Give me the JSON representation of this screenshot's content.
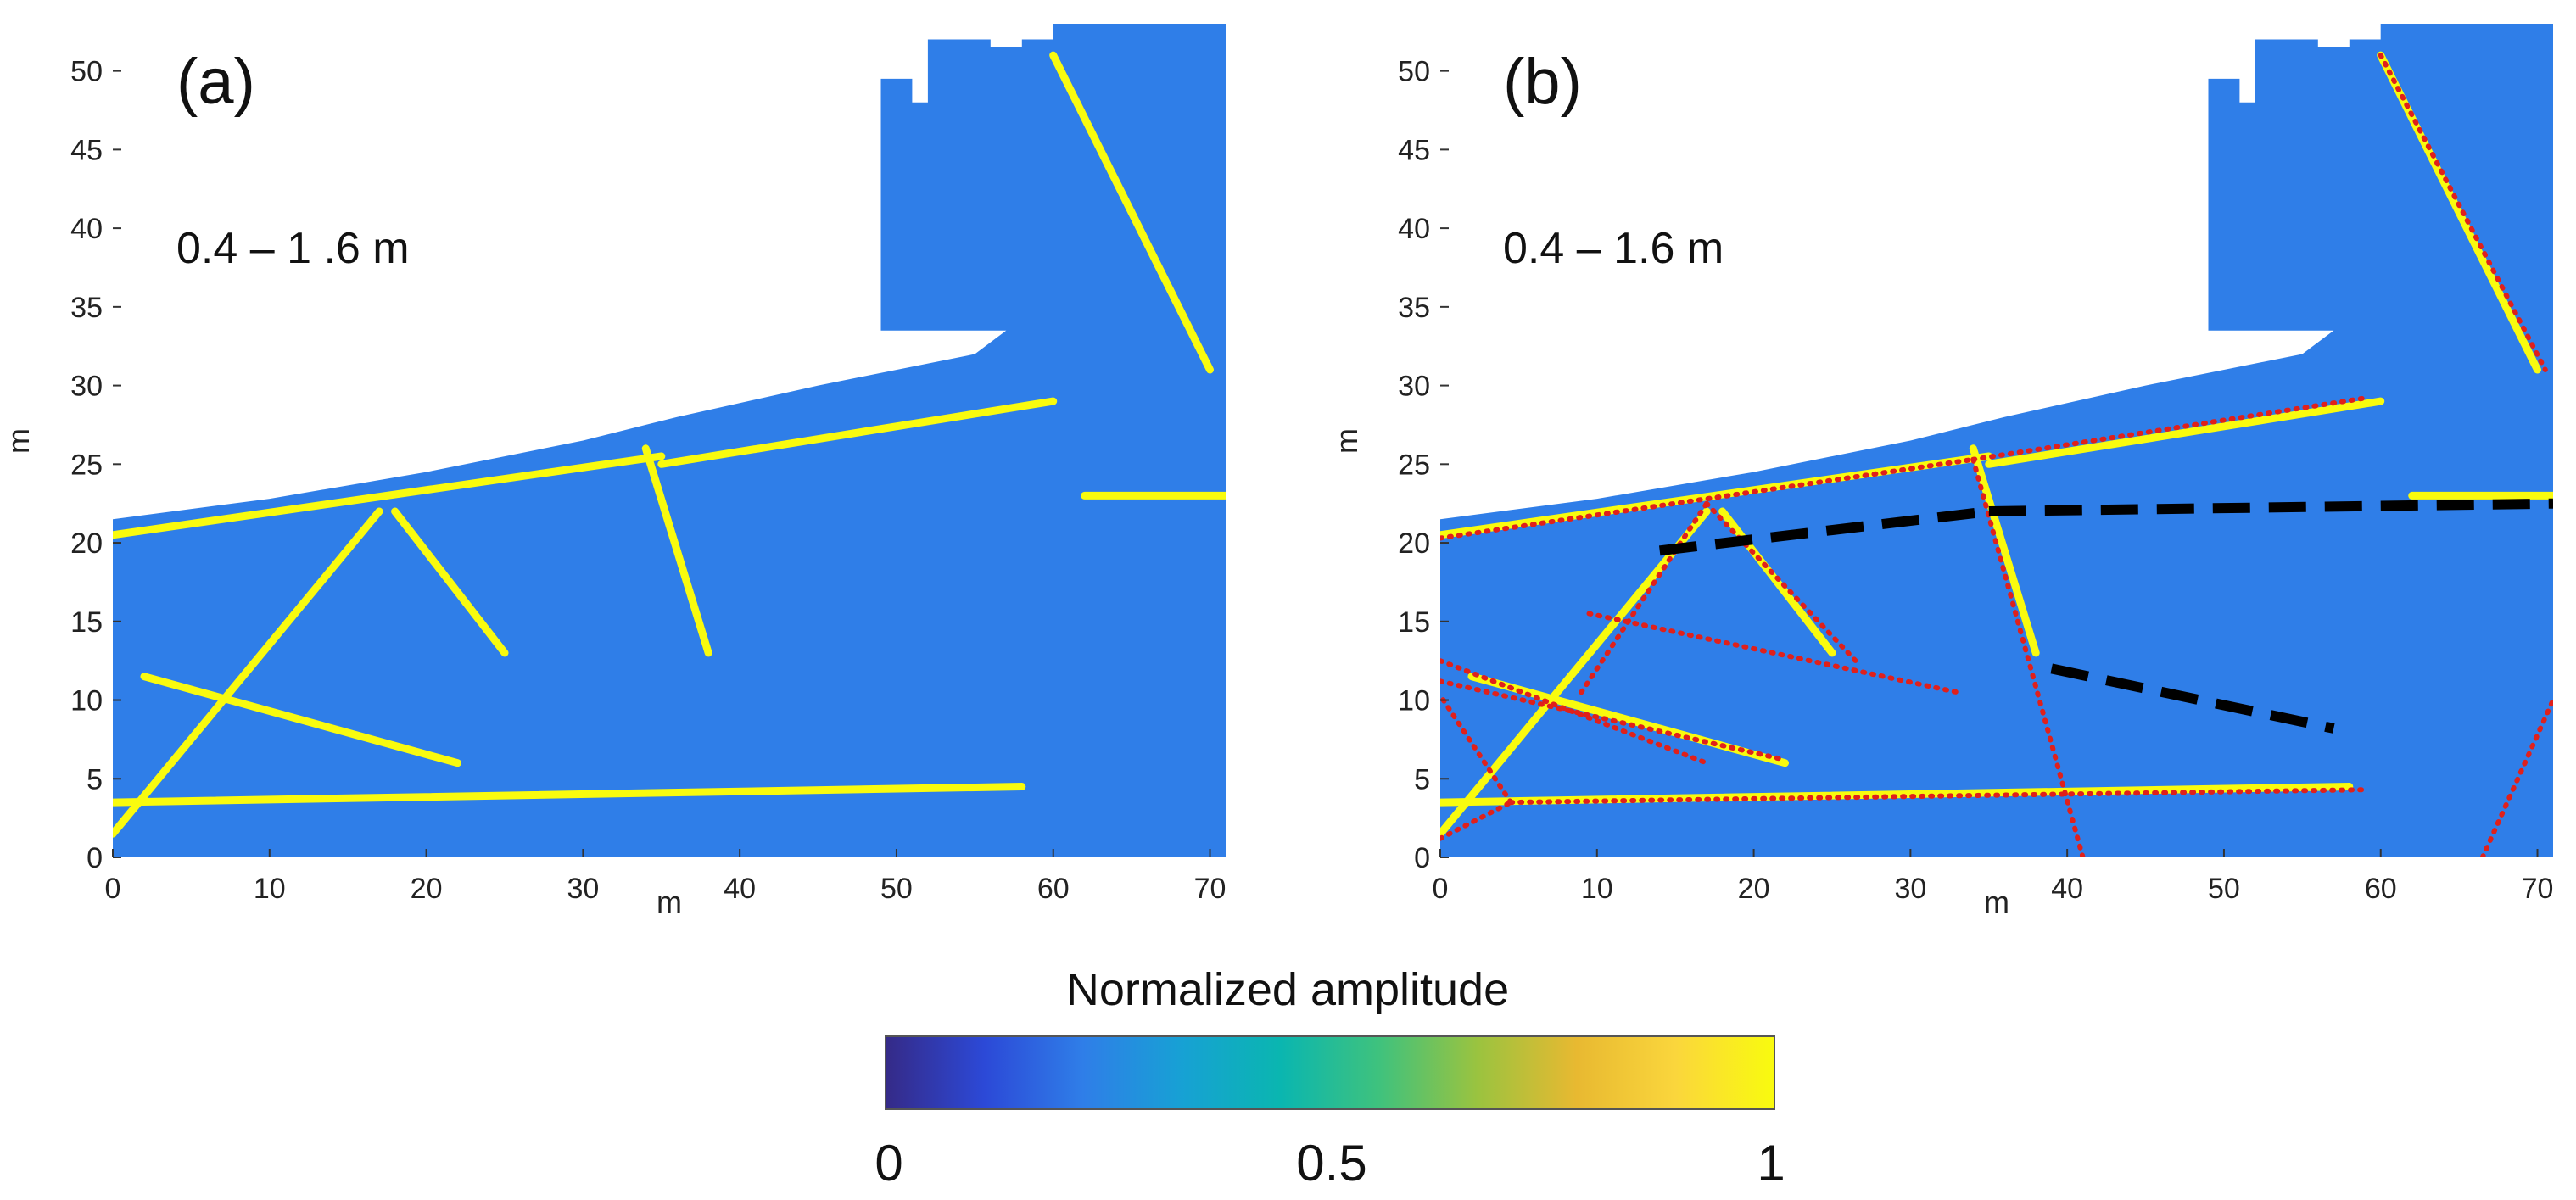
{
  "colors": {
    "cmap": [
      "#352a87",
      "#2c49d7",
      "#2f7ee8",
      "#17a1d4",
      "#0ab6b0",
      "#3fc27d",
      "#9bc33f",
      "#e8b931",
      "#fad63c",
      "#f9fb0e"
    ],
    "background": "#ffffff",
    "fault_dotted": "#e0201b",
    "fault_dashed": "#000000"
  },
  "colorbar": {
    "title": "Normalized amplitude",
    "min_label": "0",
    "mid_label": "0.5",
    "max_label": "1"
  },
  "chart_data": [
    {
      "type": "heatmap",
      "panel_label": "(a)",
      "depth_label": "0.4 – 1 .6 m",
      "xlabel": "m",
      "ylabel": "m",
      "xlim": [
        0,
        71
      ],
      "ylim": [
        0,
        53
      ],
      "xticks": [
        0,
        10,
        20,
        30,
        40,
        50,
        60,
        70
      ],
      "yticks": [
        0,
        5,
        10,
        15,
        20,
        25,
        30,
        35,
        40,
        45,
        50
      ],
      "value_range": [
        0,
        1
      ],
      "survey_outline": [
        [
          0,
          21.5
        ],
        [
          10,
          22.8
        ],
        [
          20,
          24.5
        ],
        [
          30,
          26.5
        ],
        [
          36,
          28
        ],
        [
          45,
          30
        ],
        [
          55,
          32
        ],
        [
          57,
          33.5
        ],
        [
          49,
          33.5
        ],
        [
          49,
          49.5
        ],
        [
          51,
          49.5
        ],
        [
          51,
          48
        ],
        [
          52,
          48
        ],
        [
          52,
          52
        ],
        [
          56,
          52
        ],
        [
          56,
          51.5
        ],
        [
          58,
          51.5
        ],
        [
          58,
          52
        ],
        [
          60,
          52
        ],
        [
          60,
          53
        ],
        [
          71,
          53
        ],
        [
          71,
          0
        ],
        [
          0,
          0
        ]
      ],
      "features": [
        {
          "points": [
            [
              0,
              20.5
            ],
            [
              35,
              25.5
            ]
          ]
        },
        {
          "points": [
            [
              35,
              25
            ],
            [
              60,
              29
            ]
          ]
        },
        {
          "points": [
            [
              0,
              3.5
            ],
            [
              58,
              4.5
            ]
          ]
        },
        {
          "points": [
            [
              0,
              1.5
            ],
            [
              17,
              22
            ]
          ]
        },
        {
          "points": [
            [
              18,
              22
            ],
            [
              25,
              13
            ]
          ]
        },
        {
          "points": [
            [
              34,
              26
            ],
            [
              38,
              13
            ]
          ]
        },
        {
          "points": [
            [
              2,
              11.5
            ],
            [
              22,
              6
            ]
          ]
        },
        {
          "points": [
            [
              62,
              23
            ],
            [
              71,
              23
            ]
          ]
        },
        {
          "points": [
            [
              60,
              51
            ],
            [
              70,
              31
            ]
          ]
        }
      ]
    },
    {
      "type": "heatmap",
      "panel_label": "(b)",
      "depth_label": "0.4 – 1.6 m",
      "xlabel": "m",
      "ylabel": "m",
      "xlim": [
        0,
        71
      ],
      "ylim": [
        0,
        53
      ],
      "xticks": [
        0,
        10,
        20,
        30,
        40,
        50,
        60,
        70
      ],
      "yticks": [
        0,
        5,
        10,
        15,
        20,
        25,
        30,
        35,
        40,
        45,
        50
      ],
      "value_range": [
        0,
        1
      ],
      "survey_outline": [
        [
          0,
          21.5
        ],
        [
          10,
          22.8
        ],
        [
          20,
          24.5
        ],
        [
          30,
          26.5
        ],
        [
          36,
          28
        ],
        [
          45,
          30
        ],
        [
          55,
          32
        ],
        [
          57,
          33.5
        ],
        [
          49,
          33.5
        ],
        [
          49,
          49.5
        ],
        [
          51,
          49.5
        ],
        [
          51,
          48
        ],
        [
          52,
          48
        ],
        [
          52,
          52
        ],
        [
          56,
          52
        ],
        [
          56,
          51.5
        ],
        [
          58,
          51.5
        ],
        [
          58,
          52
        ],
        [
          60,
          52
        ],
        [
          60,
          53
        ],
        [
          71,
          53
        ],
        [
          71,
          0
        ],
        [
          0,
          0
        ]
      ],
      "features": [
        {
          "points": [
            [
              0,
              20.5
            ],
            [
              35,
              25.5
            ]
          ]
        },
        {
          "points": [
            [
              35,
              25
            ],
            [
              60,
              29
            ]
          ]
        },
        {
          "points": [
            [
              0,
              3.5
            ],
            [
              58,
              4.5
            ]
          ]
        },
        {
          "points": [
            [
              0,
              1.5
            ],
            [
              17,
              22
            ]
          ]
        },
        {
          "points": [
            [
              18,
              22
            ],
            [
              25,
              13
            ]
          ]
        },
        {
          "points": [
            [
              34,
              26
            ],
            [
              38,
              13
            ]
          ]
        },
        {
          "points": [
            [
              2,
              11.5
            ],
            [
              22,
              6
            ]
          ]
        },
        {
          "points": [
            [
              62,
              23
            ],
            [
              71,
              23
            ]
          ]
        },
        {
          "points": [
            [
              60,
              51
            ],
            [
              70,
              31
            ]
          ]
        }
      ],
      "interpreted_dotted": [
        {
          "points": [
            [
              0,
              20.3
            ],
            [
              34,
              25.3
            ]
          ]
        },
        {
          "points": [
            [
              34,
              25.3
            ],
            [
              59,
              29.2
            ]
          ]
        },
        {
          "points": [
            [
              0,
              1.2
            ],
            [
              4.5,
              3.5
            ]
          ]
        },
        {
          "points": [
            [
              4.5,
              3.5
            ],
            [
              0,
              10.3
            ]
          ]
        },
        {
          "points": [
            [
              4.5,
              3.5
            ],
            [
              59,
              4.3
            ]
          ]
        },
        {
          "points": [
            [
              9,
              10.5
            ],
            [
              17,
              22.5
            ]
          ]
        },
        {
          "points": [
            [
              17,
              22.5
            ],
            [
              26.5,
              12.5
            ]
          ]
        },
        {
          "points": [
            [
              0,
              12.5
            ],
            [
              17,
              6
            ]
          ]
        },
        {
          "points": [
            [
              0,
              11.2
            ],
            [
              22,
              6.2
            ]
          ]
        },
        {
          "points": [
            [
              9.5,
              15.5
            ],
            [
              33,
              10.5
            ]
          ]
        },
        {
          "points": [
            [
              34,
              25.3
            ],
            [
              41,
              0
            ]
          ]
        },
        {
          "points": [
            [
              60,
              51
            ],
            [
              70.5,
              31
            ]
          ]
        },
        {
          "points": [
            [
              66.5,
              0
            ],
            [
              71,
              10
            ]
          ]
        }
      ],
      "interpreted_dashed": [
        {
          "points": [
            [
              14,
              19.5
            ],
            [
              35,
              22
            ]
          ]
        },
        {
          "points": [
            [
              35,
              22
            ],
            [
              71,
              22.5
            ]
          ]
        },
        {
          "points": [
            [
              39,
              12
            ],
            [
              57,
              8.2
            ]
          ]
        }
      ]
    }
  ]
}
